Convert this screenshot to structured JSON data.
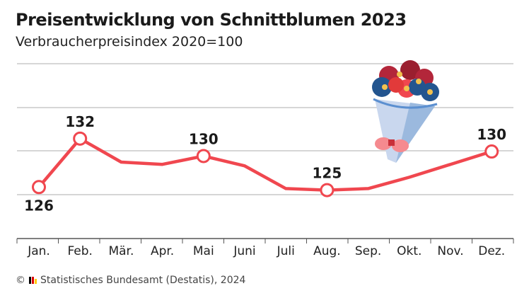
{
  "title": "Preisentwicklung von Schnittblumen 2023",
  "subtitle": "Verbraucherpreisindex 2020=100",
  "source": "Statistisches Bundesamt (Destatis), 2024",
  "source_prefix": "©",
  "colors": {
    "line": "#f0474f",
    "grid": "#c8c8c8",
    "text": "#1a1a1a"
  },
  "illustration": "flower-bouquet",
  "chart_data": {
    "type": "line",
    "title": "Preisentwicklung von Schnittblumen 2023",
    "subtitle": "Verbraucherpreisindex 2020=100",
    "categories": [
      "Jan.",
      "Feb.",
      "Mär.",
      "Apr.",
      "Mai",
      "Juni",
      "Juli",
      "Aug.",
      "Sep.",
      "Okt.",
      "Nov.",
      "Dez."
    ],
    "values": [
      125.5,
      131.9,
      128.8,
      128.5,
      129.6,
      128.3,
      125.3,
      125.1,
      125.3,
      126.8,
      128.5,
      130.2
    ],
    "data_labels": [
      {
        "index": 0,
        "text": "126",
        "position": "below"
      },
      {
        "index": 1,
        "text": "132",
        "position": "above"
      },
      {
        "index": 4,
        "text": "130",
        "position": "above"
      },
      {
        "index": 7,
        "text": "125",
        "position": "above"
      },
      {
        "index": 11,
        "text": "130",
        "position": "above"
      }
    ],
    "ylim": [
      118.7,
      141.8
    ],
    "grid": true,
    "y_ticks_labeled": false,
    "legend": "none"
  }
}
